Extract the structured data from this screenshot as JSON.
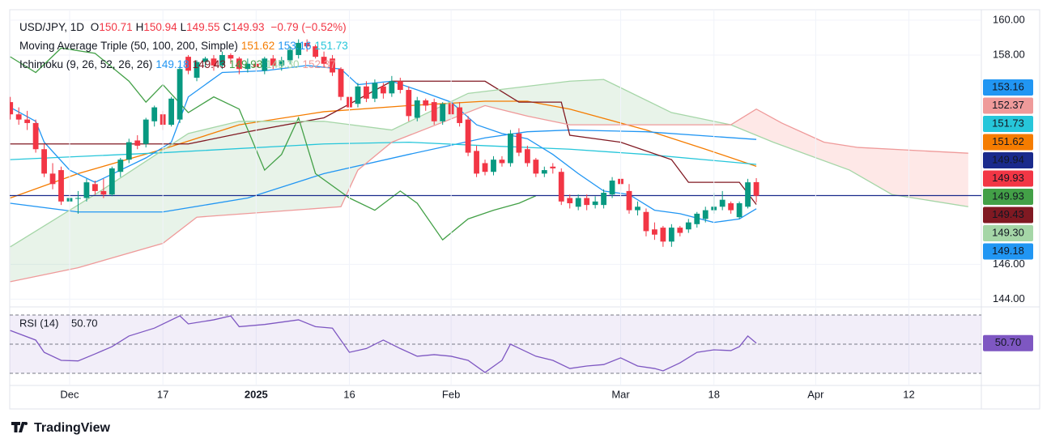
{
  "header": {
    "symbol": "USD/JPY, 1D",
    "ohlc_letters": [
      "O",
      "H",
      "L",
      "C"
    ],
    "change": "−0.79 (−0.52%)"
  },
  "brand": "TradingView",
  "chart_data": {
    "type": "candlestick",
    "up_color": "#089981",
    "down_color": "#f23645",
    "open": [
      155.3,
      154.6,
      154.3,
      154.1,
      152.6,
      151.2,
      151.4,
      149.6,
      149.8,
      149.8,
      150.6,
      150.2,
      150.0,
      151.3,
      152.0,
      153.1,
      152.9,
      154.2,
      154.6,
      154.0,
      154.3,
      157.9,
      156.7,
      157.6,
      157.8,
      157.4,
      158.0,
      157.8,
      157.2,
      157.5,
      157.1,
      157.8,
      157.4,
      157.7,
      158.0,
      158.7,
      158.5,
      157.9,
      157.8,
      157.2,
      155.6,
      155.2,
      156.2,
      155.5,
      156.2,
      155.8,
      156.5,
      156.0,
      154.4,
      155.4,
      155.3,
      154.2,
      155.2,
      155.0,
      154.3,
      152.5,
      151.8,
      151.3,
      152.0,
      151.8,
      153.5,
      152.6,
      152.0,
      151.2,
      151.6,
      151.3,
      149.8,
      149.3,
      149.8,
      149.4,
      149.4,
      150.0,
      150.9,
      150.2,
      149.1,
      149.0,
      148.0,
      148.1,
      147.3,
      148.1,
      148.0,
      148.3,
      148.6,
      149.1,
      149.3,
      149.5,
      148.7,
      149.3,
      150.71
    ],
    "high": [
      155.6,
      155.0,
      154.8,
      154.3,
      152.9,
      151.8,
      151.6,
      150.4,
      150.2,
      150.9,
      150.8,
      150.9,
      151.6,
      152.1,
      153.2,
      153.4,
      154.4,
      155.1,
      154.8,
      155.6,
      157.4,
      158.0,
      157.7,
      157.9,
      158.0,
      158.2,
      158.1,
      157.9,
      157.8,
      157.7,
      157.9,
      158.0,
      157.9,
      158.5,
      158.9,
      158.9,
      158.6,
      158.2,
      158.0,
      157.3,
      156.0,
      156.4,
      156.5,
      156.6,
      156.4,
      156.8,
      156.7,
      156.2,
      155.6,
      155.5,
      155.5,
      155.3,
      155.4,
      155.3,
      154.5,
      152.8,
      152.0,
      152.2,
      152.2,
      153.7,
      153.8,
      152.8,
      152.1,
      151.6,
      151.8,
      151.5,
      150.0,
      150.0,
      150.0,
      149.9,
      150.3,
      151.0,
      151.3,
      150.6,
      149.6,
      149.2,
      148.4,
      148.2,
      148.3,
      148.2,
      148.6,
      149.0,
      149.3,
      150.1,
      150.2,
      149.6,
      149.6,
      150.9,
      150.94
    ],
    "low": [
      154.3,
      154.0,
      153.7,
      152.4,
      151.0,
      150.3,
      149.4,
      149.3,
      148.9,
      149.6,
      150.0,
      149.8,
      149.9,
      151.0,
      151.8,
      152.6,
      152.7,
      153.9,
      153.7,
      153.9,
      154.1,
      156.9,
      156.5,
      157.3,
      157.1,
      157.2,
      157.5,
      156.9,
      157.0,
      157.1,
      156.9,
      157.2,
      157.1,
      157.5,
      157.8,
      158.2,
      157.8,
      157.3,
      156.8,
      155.4,
      154.9,
      155.0,
      155.3,
      155.3,
      155.5,
      155.6,
      155.8,
      154.2,
      154.2,
      154.8,
      154.0,
      154.0,
      154.4,
      153.9,
      152.2,
      151.0,
      151.1,
      151.1,
      151.6,
      151.6,
      152.2,
      151.6,
      151.0,
      151.0,
      151.2,
      149.4,
      149.2,
      149.1,
      149.1,
      149.2,
      149.2,
      149.8,
      150.2,
      148.9,
      148.8,
      147.6,
      147.4,
      147.0,
      147.0,
      147.6,
      147.8,
      148.1,
      148.4,
      148.9,
      149.1,
      148.9,
      148.6,
      149.2,
      149.55
    ],
    "close": [
      154.6,
      154.3,
      154.1,
      152.6,
      151.2,
      150.6,
      149.6,
      149.8,
      149.8,
      150.7,
      150.2,
      150.0,
      151.5,
      152.0,
      153.0,
      152.8,
      154.3,
      155.0,
      154.0,
      155.5,
      157.2,
      157.1,
      157.6,
      157.8,
      157.4,
      158.0,
      157.8,
      157.2,
      157.5,
      157.3,
      157.8,
      157.4,
      157.7,
      158.3,
      158.7,
      158.5,
      157.9,
      157.5,
      157.0,
      155.6,
      155.0,
      156.2,
      155.5,
      156.4,
      155.8,
      156.5,
      156.0,
      154.5,
      155.4,
      155.1,
      154.2,
      155.2,
      154.6,
      154.1,
      152.4,
      151.2,
      151.3,
      152.0,
      151.8,
      153.5,
      152.4,
      151.8,
      151.2,
      151.4,
      151.5,
      149.6,
      149.5,
      149.8,
      149.4,
      149.6,
      150.1,
      150.8,
      150.6,
      149.1,
      149.3,
      147.9,
      147.7,
      147.3,
      148.1,
      147.8,
      148.4,
      148.9,
      149.1,
      149.3,
      149.7,
      149.1,
      149.5,
      150.7,
      149.93
    ],
    "ylim": [
      143.6,
      160.6
    ],
    "yticks": [
      {
        "value": 160,
        "label": "160.00"
      },
      {
        "value": 158,
        "label": "158.00"
      },
      {
        "value": 146,
        "label": "146.00"
      },
      {
        "value": 144,
        "label": "144.00"
      }
    ],
    "xticks": [
      {
        "value": 7,
        "label": "Dec"
      },
      {
        "value": 18,
        "label": "17"
      },
      {
        "value": 29,
        "label": "2025"
      },
      {
        "value": 40,
        "label": "16"
      },
      {
        "value": 52,
        "label": "Feb"
      },
      {
        "value": 72,
        "label": "Mar"
      },
      {
        "value": 83,
        "label": "18"
      },
      {
        "value": 95,
        "label": "Apr"
      },
      {
        "value": 106,
        "label": "12"
      }
    ],
    "hline": {
      "value": 149.94,
      "color": "#1a2a8c"
    },
    "indicators": [
      {
        "title": "Moving Average Triple (50, 100, 200, Simple)",
        "lines": [
          {
            "color": "#f57c00",
            "x": [
              0,
              8,
              18,
              27,
              37,
              47,
              56,
              61,
              66,
              75,
              82,
              88
            ],
            "values": [
              149.8,
              151.2,
              152.6,
              154.0,
              154.75,
              155.1,
              155.35,
              155.35,
              154.9,
              153.7,
              152.6,
              151.62
            ]
          },
          {
            "color": "#2196f3",
            "x": [
              0,
              8,
              18,
              28,
              37,
              47,
              56,
              61,
              66,
              75,
              88
            ],
            "values": [
              149.5,
              149.0,
              149.0,
              149.8,
              151.2,
              152.3,
              153.25,
              153.6,
              153.7,
              153.6,
              153.16
            ]
          },
          {
            "color": "#26c6da",
            "x": [
              0,
              18,
              37,
              47,
              56,
              66,
              75,
              88
            ],
            "values": [
              152.0,
              152.4,
              152.9,
              153.0,
              152.8,
              152.6,
              152.3,
              151.73
            ]
          }
        ]
      },
      {
        "title": "Ichimoku (9, 26, 52, 26, 26)",
        "cloud_colors": [
          "rgba(67,160,71,0.12)",
          "rgba(244,67,54,0.12)"
        ],
        "lines": [
          {
            "color": "#2196f3",
            "x": [
              0,
              3,
              4,
              7,
              10,
              13,
              16,
              19,
              21,
              25,
              30,
              35,
              39,
              41,
              45,
              48,
              52,
              55,
              58,
              61,
              64,
              67,
              70,
              73,
              76,
              79,
              83,
              86,
              88
            ],
            "values": [
              155.0,
              154.2,
              153.0,
              151.4,
              150.7,
              151.4,
              152.1,
              153.0,
              155.6,
              157.0,
              157.1,
              157.4,
              157.2,
              156.3,
              156.5,
              156.0,
              155.3,
              154.0,
              153.5,
              153.2,
              152.3,
              151.2,
              150.2,
              150.0,
              149.1,
              148.9,
              148.4,
              148.6,
              149.18
            ]
          },
          {
            "color": "#801922",
            "x": [
              0,
              21,
              28,
              37,
              45,
              56,
              60,
              65,
              66,
              72,
              78,
              80,
              86,
              88
            ],
            "values": [
              152.9,
              152.9,
              153.6,
              154.4,
              156.5,
              156.5,
              155.3,
              155.3,
              153.4,
              153.0,
              152.0,
              150.7,
              150.7,
              149.43
            ]
          },
          {
            "color": "#43a047",
            "x": [
              0,
              3,
              6,
              10,
              14,
              16,
              18,
              21,
              24,
              27,
              30,
              32,
              34,
              36,
              40,
              43,
              46,
              48,
              51,
              54,
              57,
              60,
              62
            ],
            "values": [
              157.9,
              157.0,
              158.4,
              158.1,
              156.5,
              155.3,
              156.3,
              154.7,
              155.6,
              154.9,
              151.4,
              152.3,
              154.4,
              151.2,
              149.8,
              149.1,
              150.2,
              149.5,
              147.4,
              148.6,
              149.1,
              149.5,
              149.93
            ]
          },
          {
            "color": "#a5d6a7",
            "x": [
              0,
              10,
              21,
              27,
              37,
              45,
              54,
              66,
              70,
              78,
              85,
              90,
              99,
              104,
              113
            ],
            "values": [
              147.0,
              150.0,
              153.5,
              154.2,
              154.2,
              153.7,
              155.8,
              156.5,
              156.6,
              154.7,
              154.0,
              153.0,
              151.4,
              150.0,
              149.3
            ],
            "value_label": "149.30"
          },
          {
            "color": "#ef9a9a",
            "x": [
              0,
              8,
              18,
              22,
              39,
              41,
              45,
              56,
              61,
              66,
              85,
              88,
              91,
              96,
              100,
              113
            ],
            "values": [
              145.0,
              145.8,
              147.2,
              148.7,
              149.3,
              151.4,
              153.0,
              155.1,
              154.5,
              154.0,
              154.0,
              154.9,
              154.1,
              153.0,
              152.7,
              152.37
            ]
          }
        ]
      }
    ],
    "rsi": {
      "title": "RSI (14)",
      "color": "#7e57c2",
      "ylim": [
        22,
        75
      ],
      "bands": [
        70,
        50,
        30
      ],
      "x": [
        0,
        3,
        4,
        6,
        8,
        10,
        12,
        14,
        17,
        20,
        21,
        24,
        26,
        27,
        30,
        34,
        36,
        38,
        40,
        42,
        44,
        46,
        48,
        50,
        52,
        54,
        56,
        58,
        59,
        62,
        64,
        66,
        68,
        70,
        72,
        74,
        76,
        77,
        79,
        81,
        83,
        85,
        86,
        87,
        88
      ],
      "values": [
        59.4,
        52.8,
        44.4,
        38.9,
        38.5,
        43.3,
        48.3,
        55.6,
        61,
        69.4,
        63.9,
        66.7,
        69.4,
        62,
        63.5,
        66.7,
        62,
        61,
        44.4,
        47,
        52.8,
        47,
        41.7,
        42.8,
        41.7,
        38.9,
        30.6,
        38.9,
        50,
        41.7,
        38.9,
        33.3,
        35,
        36,
        40.6,
        35,
        33.3,
        31.7,
        37.2,
        44.4,
        46.1,
        45.6,
        48.3,
        55.6,
        50.7
      ],
      "value_label": "50.70"
    }
  }
}
